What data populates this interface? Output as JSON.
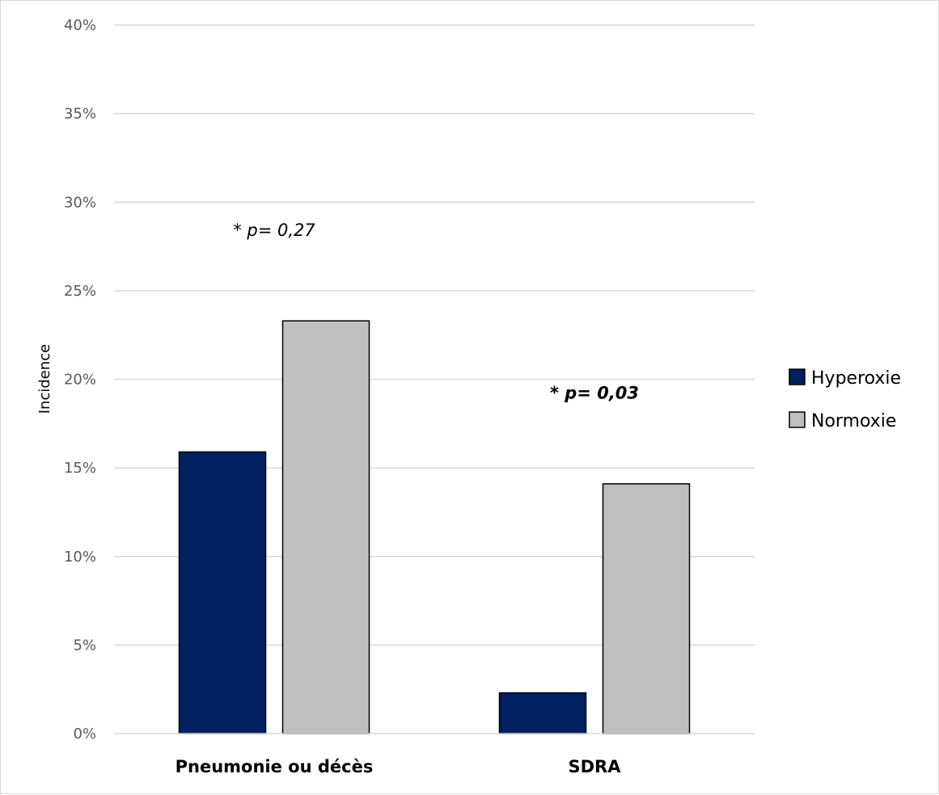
{
  "chart_data": {
    "type": "bar",
    "title": "",
    "ylabel": "Incidence",
    "xlabel": "",
    "ylim": [
      0,
      40
    ],
    "y_ticks": [
      "0%",
      "5%",
      "10%",
      "15%",
      "20%",
      "25%",
      "30%",
      "35%",
      "40%"
    ],
    "grid": true,
    "legend_position": "right",
    "categories": [
      "Pneumonie ou décès",
      "SDRA"
    ],
    "series": [
      {
        "name": "Hyperoxie",
        "color": "#002060",
        "values": [
          15.9,
          2.3
        ]
      },
      {
        "name": "Normoxie",
        "color": "#bfbfbf",
        "values": [
          23.3,
          14.1
        ]
      }
    ],
    "annotations": [
      {
        "text": "* p= 0,27",
        "category": "Pneumonie ou décès",
        "y": 28.1,
        "bold": false
      },
      {
        "text": "* p= 0,03",
        "category": "SDRA",
        "y": 18.9,
        "bold": true
      }
    ]
  }
}
